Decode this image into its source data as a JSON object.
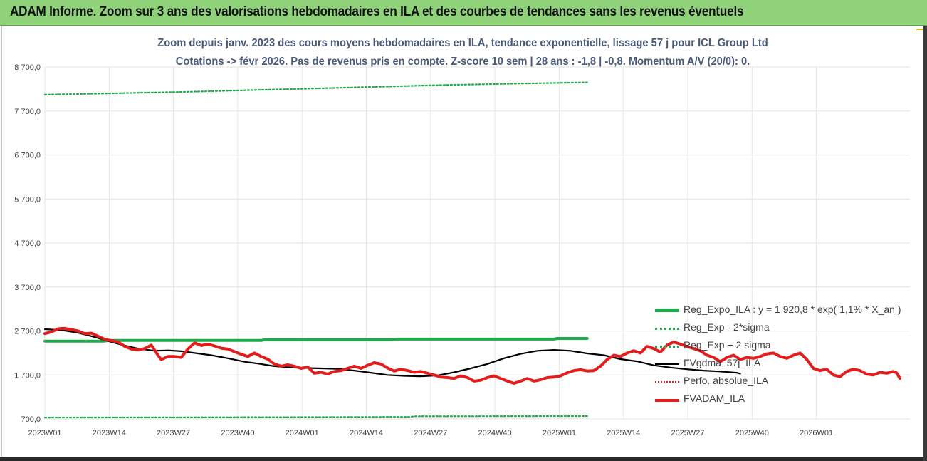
{
  "header": {
    "title": "ADAM Informe. Zoom sur 3 ans des valorisations hebdomadaires en ILA et des courbes de tendances sans les revenus éventuels"
  },
  "chart_data": {
    "type": "line",
    "title": "Zoom depuis janv. 2023 des cours moyens hebdomadaires en ILA, tendance exponentielle, lissage 57 j pour ICL Group Ltd",
    "subtitle": "Cotations -> févr 2026.  Pas de revenus pris en compte. Z-score 10 sem | 28 ans : -1,8 | -0,8. Momentum A/V (20/0): 0.",
    "xlabel": "",
    "ylabel": "",
    "ylim": [
      700,
      8700
    ],
    "y_ticks": [
      "8 700,0",
      "7 700,0",
      "6 700,0",
      "5 700,0",
      "4 700,0",
      "3 700,0",
      "2 700,0",
      "1 700,0",
      "700,0"
    ],
    "y_tick_values": [
      8700,
      7700,
      6700,
      5700,
      4700,
      3700,
      2700,
      1700,
      700
    ],
    "x_ticks": [
      "2023W01",
      "2023W14",
      "2023W27",
      "2023W40",
      "2024W01",
      "2024W14",
      "2024W27",
      "2024W40",
      "2025W01",
      "2025W14",
      "2025W27",
      "2025W40",
      "2026W01"
    ],
    "grid": true,
    "legend_position": "bottom-right",
    "series": [
      {
        "name": "Reg_Expo_ILA : y = 1 920,8 * exp( 1,1% *  X_an )",
        "style": "solid-thick",
        "color": "#1faa4b",
        "points": [
          [
            0,
            2470
          ],
          [
            18,
            2470
          ],
          [
            19,
            2485
          ],
          [
            65,
            2485
          ],
          [
            66,
            2500
          ],
          [
            105,
            2500
          ],
          [
            106,
            2515
          ],
          [
            153,
            2515
          ],
          [
            154,
            2530
          ],
          [
            163,
            2530
          ]
        ]
      },
      {
        "name": "Reg_Exp - 2*sigma",
        "style": "dotted",
        "color": "#1faa4b",
        "points": [
          [
            0,
            8070
          ],
          [
            20,
            8100
          ],
          [
            40,
            8130
          ],
          [
            60,
            8170
          ],
          [
            80,
            8210
          ],
          [
            100,
            8250
          ],
          [
            120,
            8290
          ],
          [
            140,
            8320
          ],
          [
            163,
            8350
          ]
        ]
      },
      {
        "name": "Reg_Exp + 2 sigma",
        "style": "dotted",
        "color": "#1faa4b",
        "points": [
          [
            0,
            730
          ],
          [
            40,
            735
          ],
          [
            80,
            740
          ],
          [
            110,
            745
          ],
          [
            111,
            760
          ],
          [
            163,
            765
          ]
        ]
      },
      {
        "name": "FVgdma_57j_ILA",
        "style": "solid",
        "color": "#000000",
        "points": [
          [
            0,
            2740
          ],
          [
            5,
            2720
          ],
          [
            10,
            2660
          ],
          [
            15,
            2560
          ],
          [
            20,
            2450
          ],
          [
            24,
            2370
          ],
          [
            28,
            2300
          ],
          [
            33,
            2250
          ],
          [
            37,
            2260
          ],
          [
            41,
            2240
          ],
          [
            45,
            2200
          ],
          [
            50,
            2150
          ],
          [
            55,
            2080
          ],
          [
            60,
            2000
          ],
          [
            64,
            1960
          ],
          [
            69,
            1900
          ],
          [
            74,
            1870
          ],
          [
            78,
            1860
          ],
          [
            83,
            1850
          ],
          [
            88,
            1840
          ],
          [
            93,
            1800
          ],
          [
            97,
            1760
          ],
          [
            103,
            1700
          ],
          [
            108,
            1680
          ],
          [
            113,
            1670
          ],
          [
            118,
            1690
          ],
          [
            123,
            1760
          ],
          [
            128,
            1850
          ],
          [
            133,
            1950
          ],
          [
            138,
            2080
          ],
          [
            143,
            2180
          ],
          [
            148,
            2250
          ],
          [
            153,
            2270
          ],
          [
            158,
            2250
          ],
          [
            163,
            2190
          ],
          [
            168,
            2150
          ],
          [
            173,
            2060
          ],
          [
            178,
            2010
          ],
          [
            183,
            1920
          ],
          [
            188,
            1870
          ],
          [
            193,
            1830
          ],
          [
            198,
            1800
          ],
          [
            203,
            1780
          ],
          [
            208,
            1750
          ],
          [
            209,
            1730
          ]
        ]
      },
      {
        "name": "Perfo. absolue_ILA",
        "style": "dotted",
        "color": "#e02020",
        "points": []
      },
      {
        "name": "FVADAM_ILA",
        "style": "solid-thick",
        "color": "#e41c1c",
        "points": [
          [
            0,
            2640
          ],
          [
            2,
            2680
          ],
          [
            4,
            2750
          ],
          [
            6,
            2760
          ],
          [
            8,
            2730
          ],
          [
            10,
            2700
          ],
          [
            12,
            2640
          ],
          [
            14,
            2650
          ],
          [
            16,
            2580
          ],
          [
            18,
            2510
          ],
          [
            20,
            2480
          ],
          [
            22,
            2450
          ],
          [
            24,
            2350
          ],
          [
            26,
            2290
          ],
          [
            28,
            2270
          ],
          [
            30,
            2300
          ],
          [
            32,
            2380
          ],
          [
            34,
            2150
          ],
          [
            35,
            2050
          ],
          [
            37,
            2120
          ],
          [
            39,
            2120
          ],
          [
            41,
            2100
          ],
          [
            43,
            2290
          ],
          [
            45,
            2430
          ],
          [
            47,
            2370
          ],
          [
            49,
            2400
          ],
          [
            51,
            2360
          ],
          [
            53,
            2310
          ],
          [
            55,
            2290
          ],
          [
            57,
            2230
          ],
          [
            59,
            2170
          ],
          [
            61,
            2120
          ],
          [
            63,
            2200
          ],
          [
            65,
            2120
          ],
          [
            67,
            2060
          ],
          [
            69,
            1950
          ],
          [
            71,
            1900
          ],
          [
            73,
            1930
          ],
          [
            75,
            1900
          ],
          [
            77,
            1850
          ],
          [
            79,
            1880
          ],
          [
            81,
            1740
          ],
          [
            83,
            1760
          ],
          [
            85,
            1720
          ],
          [
            87,
            1780
          ],
          [
            89,
            1800
          ],
          [
            91,
            1850
          ],
          [
            93,
            1900
          ],
          [
            95,
            1850
          ],
          [
            97,
            1920
          ],
          [
            99,
            1980
          ],
          [
            101,
            1950
          ],
          [
            103,
            1860
          ],
          [
            105,
            1790
          ],
          [
            107,
            1830
          ],
          [
            109,
            1800
          ],
          [
            111,
            1760
          ],
          [
            113,
            1780
          ],
          [
            115,
            1740
          ],
          [
            117,
            1700
          ],
          [
            119,
            1650
          ],
          [
            121,
            1640
          ],
          [
            123,
            1620
          ],
          [
            125,
            1680
          ],
          [
            127,
            1640
          ],
          [
            129,
            1560
          ],
          [
            131,
            1580
          ],
          [
            133,
            1640
          ],
          [
            135,
            1680
          ],
          [
            137,
            1620
          ],
          [
            139,
            1560
          ],
          [
            141,
            1510
          ],
          [
            143,
            1560
          ],
          [
            145,
            1620
          ],
          [
            147,
            1560
          ],
          [
            149,
            1590
          ],
          [
            151,
            1640
          ],
          [
            153,
            1650
          ],
          [
            155,
            1680
          ],
          [
            157,
            1750
          ],
          [
            159,
            1800
          ],
          [
            161,
            1820
          ],
          [
            163,
            1790
          ],
          [
            165,
            1800
          ],
          [
            167,
            1900
          ],
          [
            169,
            2050
          ],
          [
            171,
            2150
          ],
          [
            173,
            2120
          ],
          [
            175,
            2200
          ],
          [
            177,
            2250
          ],
          [
            179,
            2200
          ],
          [
            181,
            2350
          ],
          [
            183,
            2300
          ],
          [
            185,
            2220
          ],
          [
            187,
            2380
          ],
          [
            189,
            2450
          ],
          [
            191,
            2400
          ],
          [
            193,
            2350
          ],
          [
            195,
            2300
          ],
          [
            197,
            2250
          ],
          [
            199,
            2150
          ],
          [
            201,
            2100
          ],
          [
            203,
            2000
          ],
          [
            205,
            2100
          ],
          [
            207,
            2150
          ],
          [
            209,
            2050
          ],
          [
            211,
            2100
          ],
          [
            213,
            2080
          ],
          [
            215,
            2120
          ],
          [
            217,
            2180
          ],
          [
            219,
            2200
          ],
          [
            221,
            2120
          ],
          [
            223,
            2080
          ],
          [
            225,
            2150
          ],
          [
            227,
            2200
          ],
          [
            229,
            2050
          ],
          [
            231,
            1850
          ],
          [
            233,
            1800
          ],
          [
            235,
            1830
          ],
          [
            237,
            1700
          ],
          [
            239,
            1660
          ],
          [
            241,
            1780
          ],
          [
            243,
            1830
          ],
          [
            245,
            1800
          ],
          [
            247,
            1720
          ],
          [
            249,
            1700
          ],
          [
            251,
            1760
          ],
          [
            253,
            1740
          ],
          [
            255,
            1780
          ],
          [
            256,
            1750
          ],
          [
            257,
            1620
          ]
        ]
      }
    ]
  },
  "colors": {
    "banner_bg": "#8fd27a",
    "title_text": "#4a5a78",
    "reg_green": "#1faa4b",
    "red": "#e41c1c"
  }
}
